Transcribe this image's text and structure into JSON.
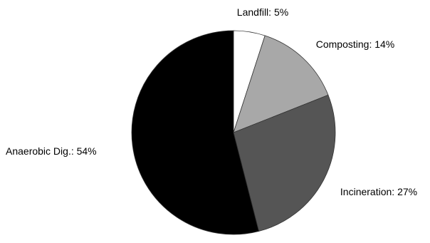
{
  "chart_data": {
    "type": "pie",
    "slices": [
      {
        "label": "Landfill: 5%",
        "value": 5,
        "color": "#ffffff"
      },
      {
        "label": "Composting: 14%",
        "value": 14,
        "color": "#a8a8a8"
      },
      {
        "label": "Incineration: 27%",
        "value": 27,
        "color": "#555555"
      },
      {
        "label": "Anaerobic Dig.: 54%",
        "value": 54,
        "color": "#000000"
      }
    ],
    "start_angle_deg": 0,
    "direction": "clockwise",
    "legend": "none"
  }
}
